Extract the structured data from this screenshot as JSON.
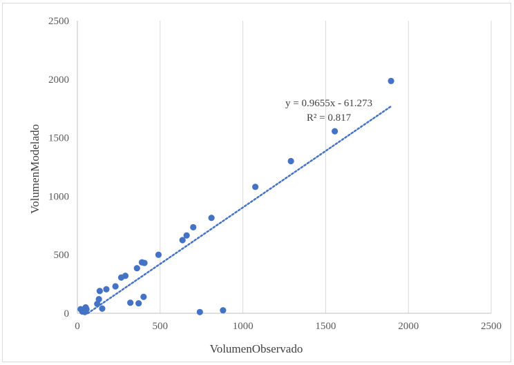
{
  "chart_data": {
    "type": "scatter",
    "title": "",
    "xlabel": "VolumenObservado",
    "ylabel": "VolumenModelado",
    "xlim": [
      0,
      2500
    ],
    "ylim": [
      0,
      2500
    ],
    "xticks": [
      0,
      500,
      1000,
      1500,
      2000,
      2500
    ],
    "yticks": [
      0,
      500,
      1000,
      1500,
      2000,
      2500
    ],
    "grid": "vertical gridlines",
    "marker_color": "#4472c4",
    "trendline_color": "#4472c4",
    "series": [
      {
        "points": [
          [
            20,
            35
          ],
          [
            30,
            15
          ],
          [
            35,
            25
          ],
          [
            40,
            20
          ],
          [
            45,
            10
          ],
          [
            50,
            50
          ],
          [
            55,
            35
          ],
          [
            120,
            80
          ],
          [
            130,
            120
          ],
          [
            135,
            190
          ],
          [
            150,
            40
          ],
          [
            175,
            205
          ],
          [
            230,
            230
          ],
          [
            265,
            305
          ],
          [
            290,
            320
          ],
          [
            320,
            90
          ],
          [
            360,
            385
          ],
          [
            370,
            85
          ],
          [
            390,
            435
          ],
          [
            400,
            140
          ],
          [
            405,
            430
          ],
          [
            490,
            500
          ],
          [
            635,
            625
          ],
          [
            660,
            665
          ],
          [
            700,
            735
          ],
          [
            810,
            815
          ],
          [
            740,
            10
          ],
          [
            880,
            25
          ],
          [
            1075,
            1080
          ],
          [
            1290,
            1300
          ],
          [
            1555,
            1555
          ],
          [
            1895,
            1985
          ]
        ]
      }
    ],
    "trendline": {
      "slope": 0.9655,
      "intercept": -61.273,
      "x_range": [
        63,
        1895
      ],
      "equation": "y = 0.9655x  - 61.273",
      "r_squared": "R² = 0.817"
    }
  }
}
